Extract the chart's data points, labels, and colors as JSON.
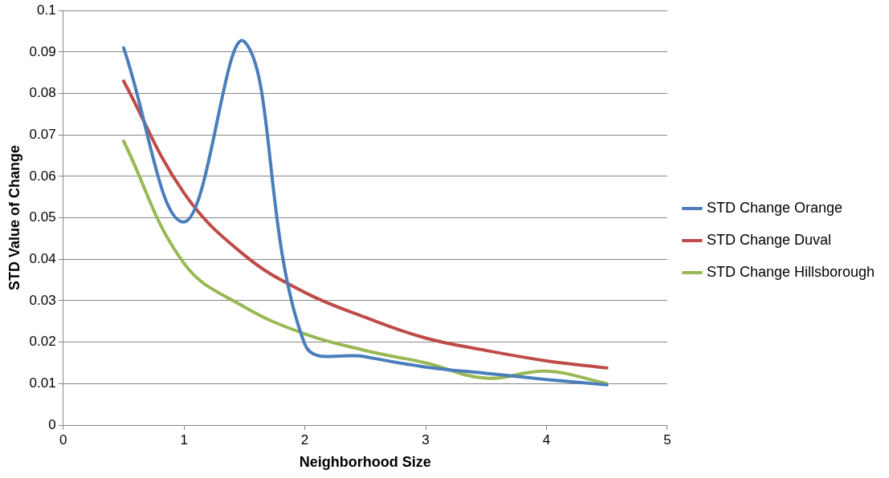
{
  "chart_data": {
    "type": "line",
    "xlabel": "Neighborhood Size",
    "ylabel": "STD Value of Change",
    "x": [
      0.5,
      1,
      1.5,
      2,
      2.5,
      3,
      3.5,
      4,
      4.5
    ],
    "series": [
      {
        "name": "STD Change Orange",
        "color": "#4a7ebb",
        "values": [
          0.091,
          0.049,
          0.0925,
          0.0195,
          0.0165,
          0.014,
          0.0125,
          0.011,
          0.0097
        ]
      },
      {
        "name": "STD Change Duval",
        "color": "#be4b48",
        "values": [
          0.083,
          0.056,
          0.041,
          0.032,
          0.026,
          0.021,
          0.018,
          0.0155,
          0.0138
        ]
      },
      {
        "name": "STD Change Hillsborough",
        "color": "#98b954",
        "values": [
          0.0685,
          0.039,
          0.0285,
          0.022,
          0.018,
          0.015,
          0.0113,
          0.013,
          0.01
        ]
      }
    ],
    "xlim": [
      0,
      5
    ],
    "xticks": [
      0,
      1,
      2,
      3,
      4,
      5
    ],
    "ylim": [
      0,
      0.1
    ],
    "yticks": [
      0,
      0.01,
      0.02,
      0.03,
      0.04,
      0.05,
      0.06,
      0.07,
      0.08,
      0.09,
      0.1
    ],
    "grid": "y",
    "legend": "right",
    "marker": "none",
    "line_style": "solid"
  }
}
